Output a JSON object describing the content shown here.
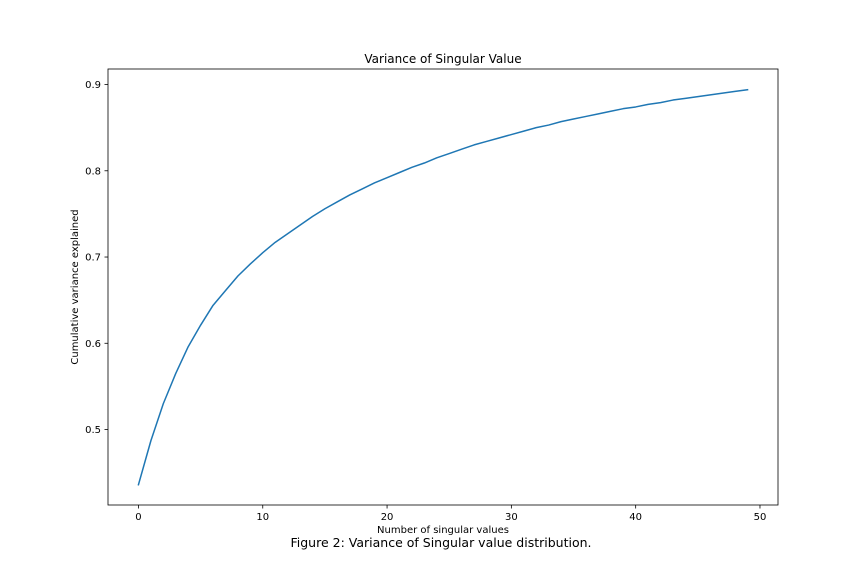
{
  "chart_data": {
    "type": "line",
    "title": "Variance of Singular Value",
    "xlabel": "Number of singular values",
    "ylabel": "Cumulative variance explained",
    "xlim": [
      -2.45,
      51.45
    ],
    "ylim": [
      0.4125,
      0.918
    ],
    "xticks": [
      0,
      10,
      20,
      30,
      40,
      50
    ],
    "yticks": [
      0.5,
      0.6,
      0.7,
      0.8,
      0.9
    ],
    "ytick_labels": [
      "0.5",
      "0.6",
      "0.7",
      "0.8",
      "0.9"
    ],
    "grid": false,
    "series": [
      {
        "color": "#1f77b4",
        "x": [
          0,
          1,
          2,
          3,
          4,
          5,
          6,
          7,
          8,
          9,
          10,
          11,
          12,
          13,
          14,
          15,
          16,
          17,
          18,
          19,
          20,
          21,
          22,
          23,
          24,
          25,
          26,
          27,
          28,
          29,
          30,
          31,
          32,
          33,
          34,
          35,
          36,
          37,
          38,
          39,
          40,
          41,
          42,
          43,
          44,
          45,
          46,
          47,
          48,
          49
        ],
        "values": [
          0.436,
          0.487,
          0.53,
          0.565,
          0.596,
          0.621,
          0.644,
          0.661,
          0.678,
          0.692,
          0.705,
          0.717,
          0.727,
          0.737,
          0.747,
          0.756,
          0.764,
          0.772,
          0.779,
          0.786,
          0.792,
          0.798,
          0.804,
          0.809,
          0.815,
          0.82,
          0.825,
          0.83,
          0.834,
          0.838,
          0.842,
          0.846,
          0.85,
          0.853,
          0.857,
          0.86,
          0.863,
          0.866,
          0.869,
          0.872,
          0.874,
          0.877,
          0.879,
          0.882,
          0.884,
          0.886,
          0.888,
          0.89,
          0.892,
          0.894
        ]
      }
    ]
  },
  "caption": "Figure 2: Variance of Singular value distribution."
}
